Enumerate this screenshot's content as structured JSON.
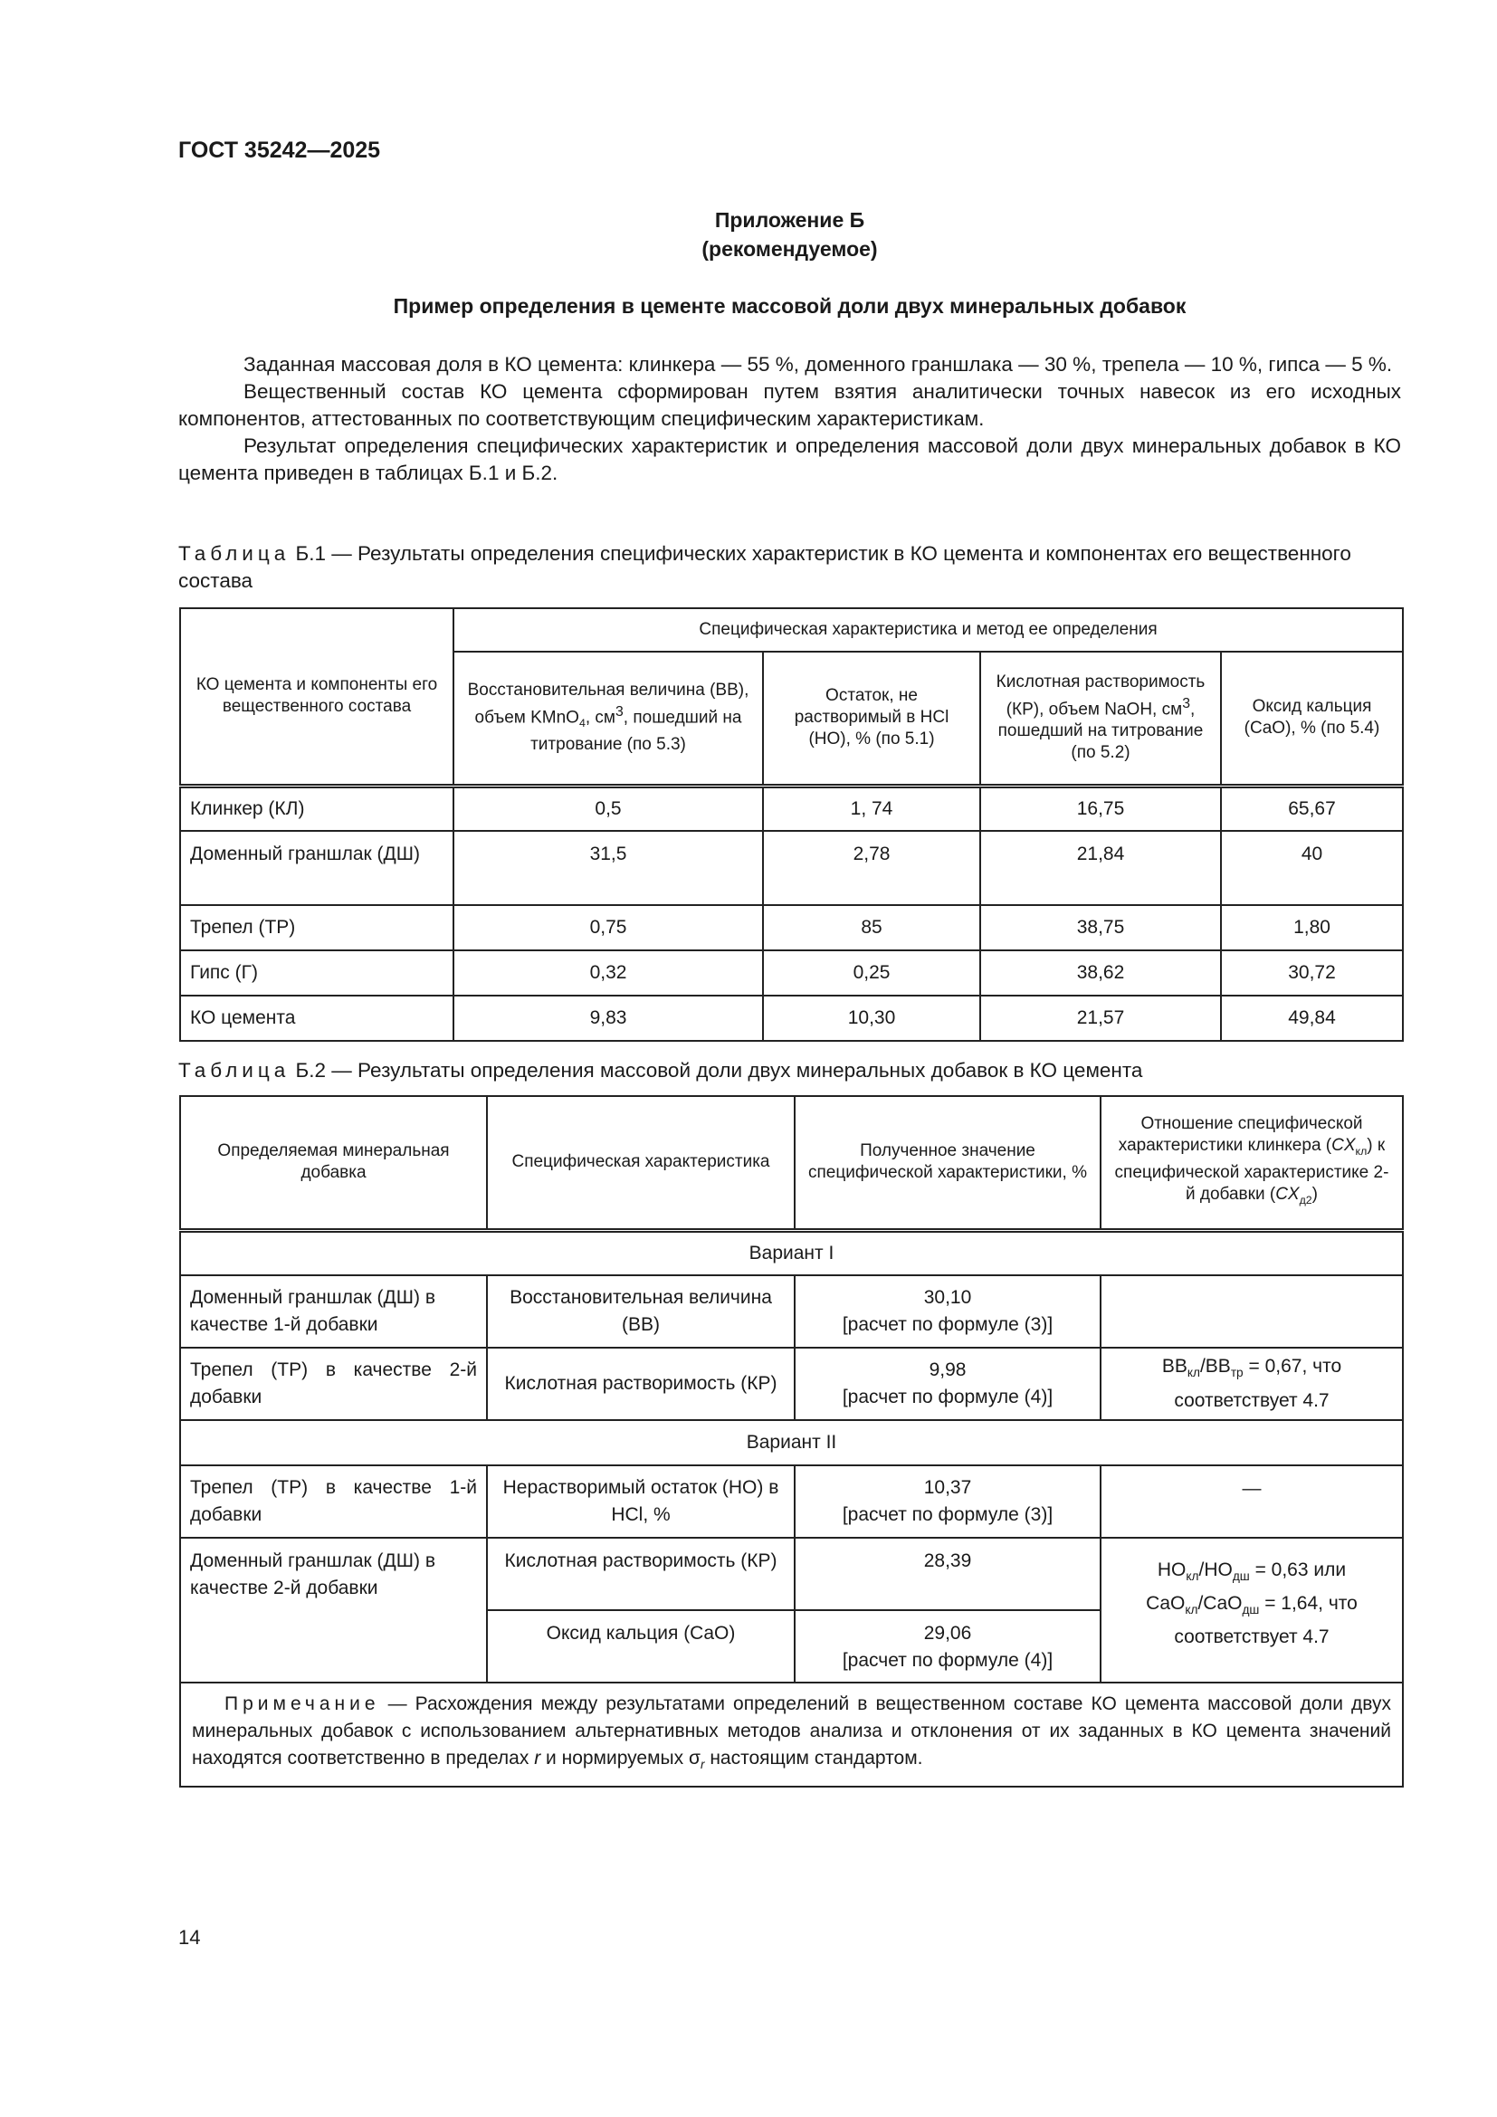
{
  "header": {
    "doc_id": "ГОСТ 35242—2025"
  },
  "appendix": {
    "title": "Приложение Б",
    "status": "(рекомендуемое)"
  },
  "section_title": "Пример определения в цементе массовой доли двух минеральных добавок",
  "paragraphs": [
    "Заданная массовая доля в КО цемента: клинкера — 55 %, доменного граншлака — 30 %, трепела — 10 %, гипса — 5 %.",
    "Вещественный состав КО цемента сформирован путем взятия аналитически точных навесок из его исходных компонентов, аттестованных по соответствующим специфическим характеристикам.",
    "Результат определения специфических характеристик и определения массовой доли двух минеральных добавок в КО цемента приведен в таблицах Б.1 и Б.2."
  ],
  "table1": {
    "caption_label": "Таблица",
    "caption_text": "Б.1 — Результаты определения специфических характеристик в КО цемента и компонентах его вещественного состава",
    "col0_header": "КО цемента и компоненты его вещественного состава",
    "group_header": "Специфическая характеристика и метод ее определения",
    "col1_header": {
      "a": "Восстановительная величина (ВВ), объем KMnO",
      "sub": "4",
      "b": ", см",
      "sup": "3",
      "c": ", пошедший на титрование (по 5.3)"
    },
    "col2_header": "Остаток, не растворимый в HCl (НО), % (по 5.1)",
    "col3_header": {
      "a": "Кислотная растворимость (КР), объем NaOH, см",
      "sup": "3",
      "b": ", пошедший на титрование (по 5.2)"
    },
    "col4_header": "Оксид кальция (CaO), % (по 5.4)",
    "rows": [
      {
        "name": "Клинкер (КЛ)",
        "vals": [
          "0,5",
          "1, 74",
          "16,75",
          "65,67"
        ]
      },
      {
        "name": "Доменный граншлак (ДШ)",
        "vals": [
          "31,5",
          "2,78",
          "21,84",
          "40"
        ]
      },
      {
        "name": "Трепел (ТР)",
        "vals": [
          "0,75",
          "85",
          "38,75",
          "1,80"
        ]
      },
      {
        "name": "Гипс (Г)",
        "vals": [
          "0,32",
          "0,25",
          "38,62",
          "30,72"
        ]
      },
      {
        "name": "КО цемента",
        "vals": [
          "9,83",
          "10,30",
          "21,57",
          "49,84"
        ]
      }
    ]
  },
  "table2": {
    "caption_label": "Таблица",
    "caption_text": "Б.2 — Результаты определения массовой доли двух минеральных добавок в КО цемента",
    "headers": {
      "col0": "Определяемая минеральная добавка",
      "col1": "Специфическая характеристика",
      "col2": "Полученное значение специфической характеристики, %",
      "col3": {
        "a": "Отношение специфической характеристики клинкера (",
        "cx1": "CX",
        "sub1": "кл",
        "b": ") к специфической характеристике 2-й добавки (",
        "cx2": "CX",
        "sub2": "д2",
        "c": ")"
      }
    },
    "variant1": "Вариант I",
    "variant2": "Вариант II",
    "v1_rows": [
      {
        "additive": "Доменный граншлак (ДШ) в качестве 1-й добавки",
        "characteristic": "Восстановительная величина (ВВ)",
        "value": "30,10",
        "formula": "[расчет по формуле (3)]"
      },
      {
        "additive": "Трепел (ТР) в качестве 2-й добавки",
        "characteristic": "Кислотная растворимость (КР)",
        "value": "9,98",
        "formula": "[расчет по формуле (4)]",
        "ratio": {
          "a": "ВВ",
          "s1": "кл",
          "b": "/ВВ",
          "s2": "тр",
          "c": " = 0,67, что соответствует 4.7"
        }
      }
    ],
    "v2_rows": [
      {
        "additive": "Трепел (ТР) в качестве 1-й добавки",
        "characteristic": "Нерастворимый остаток (НО) в HCl, %",
        "value": "10,37",
        "formula": "[расчет по формуле (3)]",
        "ratio": "—"
      },
      {
        "additive": "Доменный граншлак (ДШ) в качестве 2-й добавки",
        "characteristic": "Кислотная растворимость (КР)",
        "value": "28,39",
        "characteristic2": "Оксид кальция (CaO)",
        "value2": "29,06",
        "formula2": "[расчет по формуле (4)]",
        "ratio": {
          "a": "НО",
          "s1": "кл",
          "b": "/НО",
          "s2": "дш",
          "c": " = 0,63 или CaO",
          "s3": "кл",
          "d": "/CaO",
          "s4": "дш",
          "e": " = 1,64, что соответствует 4.7"
        }
      }
    ],
    "note_label": "Примечание",
    "note_a": " — Расхождения между результатами определений в вещественном составе КО цемента массовой доли двух минеральных добавок с использованием альтернативных методов анализа и отклонения от их заданных в КО цемента значений находятся соответственно в пределах ",
    "note_r": "r",
    "note_b": " и  нормируемых σ",
    "note_sub": "r",
    "note_c": " настоящим стандартом."
  },
  "page_number": "14"
}
